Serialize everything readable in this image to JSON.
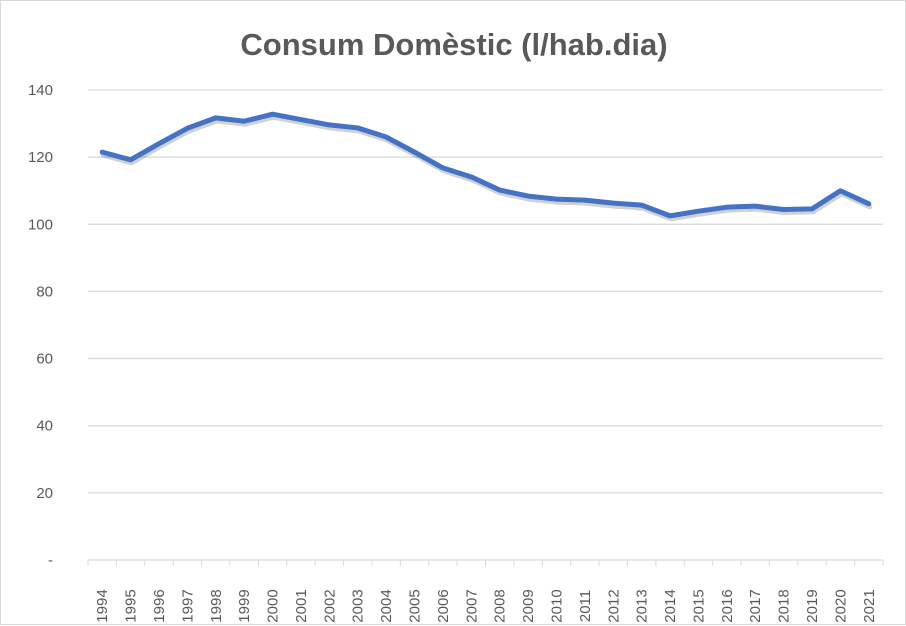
{
  "chart_data": {
    "type": "line",
    "title": "Consum Domèstic (l/hab.dia)",
    "xlabel": "",
    "ylabel": "",
    "ylim": [
      0,
      140
    ],
    "yticks": [
      0,
      20,
      40,
      60,
      80,
      100,
      120,
      140
    ],
    "ytick_labels": [
      "-",
      "20",
      "40",
      "60",
      "80",
      "100",
      "120",
      "140"
    ],
    "grid": true,
    "legend": "none",
    "categories": [
      "1994",
      "1995",
      "1996",
      "1997",
      "1998",
      "1999",
      "2000",
      "2001",
      "2002",
      "2003",
      "2004",
      "2005",
      "2006",
      "2007",
      "2008",
      "2009",
      "2010",
      "2011",
      "2012",
      "2013",
      "2014",
      "2015",
      "2016",
      "2017",
      "2018",
      "2019",
      "2020",
      "2021"
    ],
    "series": [
      {
        "name": "Consum Domèstic",
        "color": "#4472c4",
        "values": [
          121.5,
          119.2,
          124,
          128.6,
          131.7,
          130.7,
          132.8,
          131.2,
          129.6,
          128.7,
          126,
          121.5,
          116.8,
          114.1,
          110.2,
          108.4,
          107.5,
          107.2,
          106.3,
          105.7,
          102.5,
          103.9,
          105.1,
          105.4,
          104.4,
          104.6,
          110,
          106.1
        ]
      }
    ]
  }
}
